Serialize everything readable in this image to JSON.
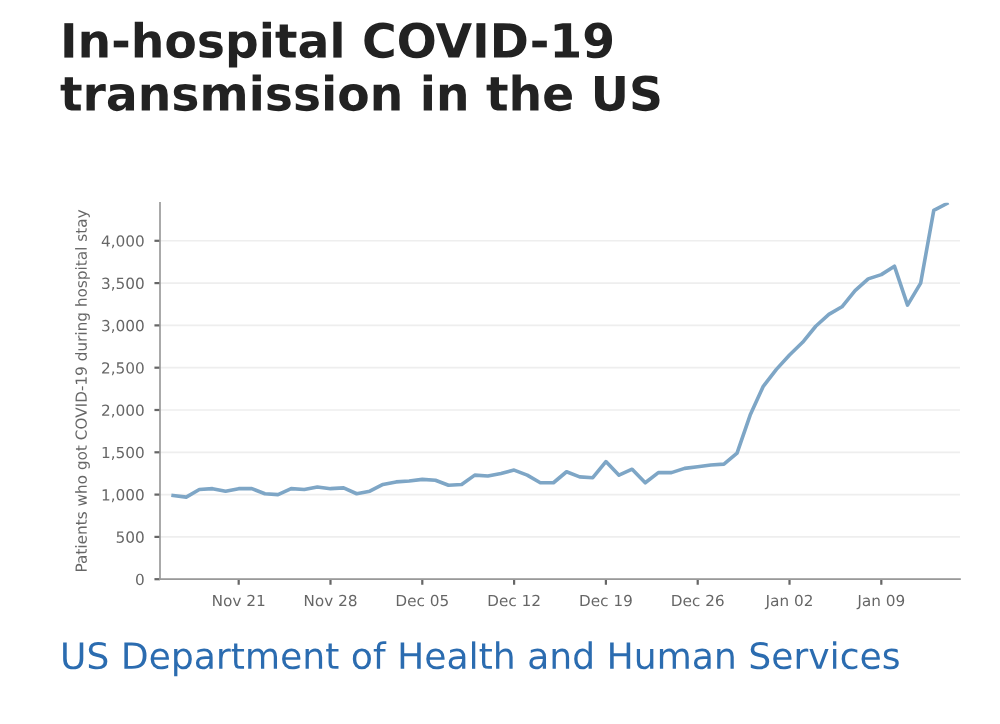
{
  "chart_data": {
    "type": "line",
    "title": "In-hospital COVID-19\ntransmission in the US",
    "ylabel": "Patients who got COVID-19 during hospital stay",
    "annotations": [
      "US Department of Health and Human Services"
    ],
    "categories": [
      null,
      null,
      null,
      null,
      null,
      "Nov 21",
      null,
      null,
      null,
      null,
      null,
      null,
      "Nov 28",
      null,
      null,
      null,
      null,
      null,
      null,
      "Dec 05",
      null,
      null,
      null,
      null,
      null,
      null,
      "Dec 12",
      null,
      null,
      null,
      null,
      null,
      null,
      "Dec 19",
      null,
      null,
      null,
      null,
      null,
      null,
      "Dec 26",
      null,
      null,
      null,
      null,
      null,
      null,
      "Jan 02",
      null,
      null,
      null,
      null,
      null,
      null,
      "Jan 09",
      null,
      null,
      null,
      null,
      null
    ],
    "series": [
      {
        "color": "#7ea6c6",
        "values": [
          990,
          970,
          1060,
          1070,
          1040,
          1070,
          1070,
          1010,
          1000,
          1070,
          1060,
          1090,
          1070,
          1080,
          1010,
          1040,
          1120,
          1150,
          1160,
          1180,
          1170,
          1110,
          1120,
          1230,
          1220,
          1250,
          1290,
          1230,
          1140,
          1140,
          1270,
          1210,
          1200,
          1390,
          1230,
          1300,
          1140,
          1260,
          1260,
          1310,
          1330,
          1350,
          1360,
          1490,
          1940,
          2280,
          2480,
          2650,
          2800,
          2990,
          3130,
          3220,
          3410,
          3550,
          3600,
          3700,
          3240,
          3500,
          4360,
          4440
        ]
      }
    ],
    "ylim": [
      0,
      4450
    ],
    "yticks": [
      0,
      500,
      {
        "value": 1000,
        "label": "1,000"
      },
      {
        "value": 1500,
        "label": "1,500"
      },
      {
        "value": 2000,
        "label": "2,000"
      },
      {
        "value": 2500,
        "label": "2,500"
      },
      {
        "value": 3000,
        "label": "3,000"
      },
      {
        "value": 3500,
        "label": "3,500"
      },
      {
        "value": 4000,
        "label": "4,000"
      }
    ],
    "grid": "y",
    "marker": "none",
    "line_style": "solid"
  }
}
